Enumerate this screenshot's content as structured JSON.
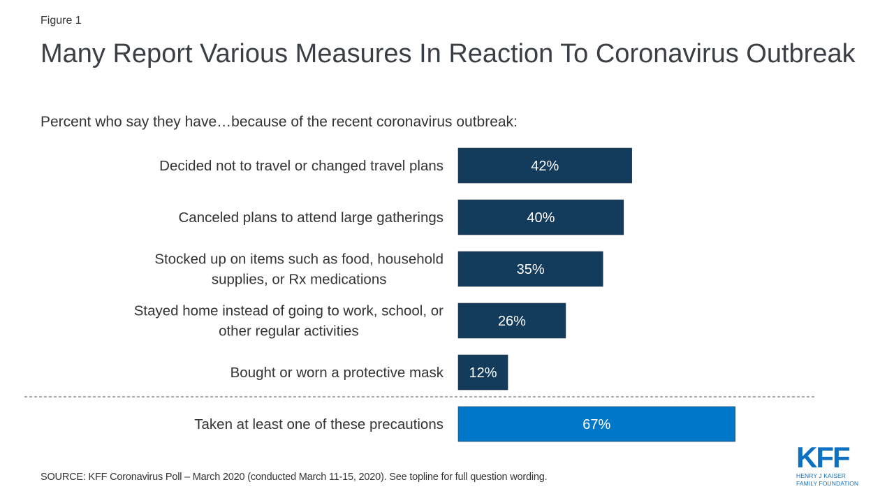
{
  "figure_label": "Figure 1",
  "title": "Many Report Various Measures In Reaction To Coronavirus Outbreak",
  "subtitle": "Percent who say they have…because of the recent coronavirus outbreak:",
  "source": "SOURCE: KFF Coronavirus Poll – March 2020 (conducted  March 11-15, 2020). See topline for full question wording.",
  "logo": {
    "mark": "KFF",
    "line1": "HENRY J KAISER",
    "line2": "FAMILY FOUNDATION"
  },
  "colors": {
    "bar": "#133b5c",
    "total_bar": "#0077c8",
    "text": "#333333",
    "logo": "#0c71c3",
    "divider": "#555555"
  },
  "chart_data": {
    "type": "bar",
    "orientation": "horizontal",
    "title": "Many Report Various Measures In Reaction To Coronavirus Outbreak",
    "xlabel": "",
    "ylabel": "",
    "xlim": [
      0,
      100
    ],
    "grid": false,
    "legend": "none",
    "categories": [
      [
        "Decided not to travel or changed travel plans"
      ],
      [
        "Canceled plans to attend large gatherings"
      ],
      [
        "Stocked up on items such as food, household",
        "supplies, or Rx medications"
      ],
      [
        "Stayed home instead of going to work, school, or",
        "other regular activities"
      ],
      [
        "Bought or worn a protective mask"
      ]
    ],
    "values": [
      42,
      40,
      35,
      26,
      12
    ],
    "value_labels": [
      "42%",
      "40%",
      "35%",
      "26%",
      "12%"
    ],
    "total": {
      "category": [
        "Taken at least one of these precautions"
      ],
      "value": 67,
      "value_label": "67%"
    }
  }
}
